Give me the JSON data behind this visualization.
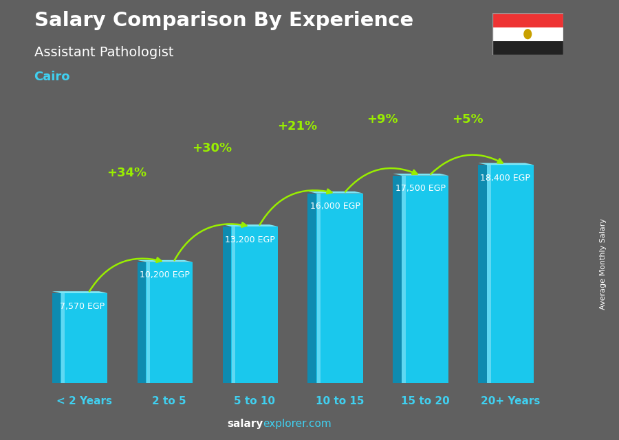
{
  "categories": [
    "< 2 Years",
    "2 to 5",
    "5 to 10",
    "10 to 15",
    "15 to 20",
    "20+ Years"
  ],
  "values": [
    7570,
    10200,
    13200,
    16000,
    17500,
    18400
  ],
  "bar_color_face": "#1ac8ed",
  "bar_color_light": "#7de8f7",
  "bar_color_dark": "#0e8bb0",
  "title_line1": "Salary Comparison By Experience",
  "title_line2": "Assistant Pathologist",
  "subtitle": "Cairo",
  "salary_labels": [
    "7,570 EGP",
    "10,200 EGP",
    "13,200 EGP",
    "16,000 EGP",
    "17,500 EGP",
    "18,400 EGP"
  ],
  "pct_labels": [
    "+34%",
    "+30%",
    "+21%",
    "+9%",
    "+5%"
  ],
  "footer_white": "salary",
  "footer_cyan": "explorer.com",
  "y_axis_label": "Average Monthly Salary",
  "background_color": "#606060",
  "title_color": "#ffffff",
  "subtitle_color": "#40d0f0",
  "salary_label_color": "#ffffff",
  "pct_color": "#99ee00",
  "x_label_color": "#40d0f0",
  "x_label_numbers_color": "#40d0f0",
  "x_label_to_color": "#40d0f0"
}
